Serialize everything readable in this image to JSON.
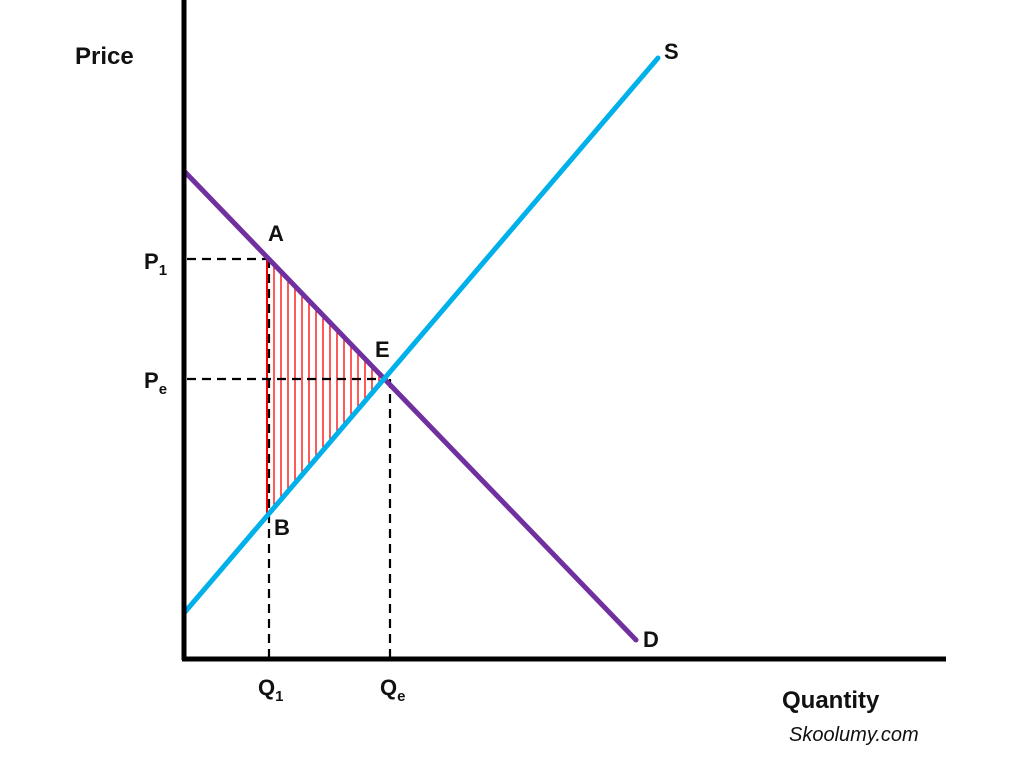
{
  "diagram": {
    "y_axis_label": "Price",
    "x_axis_label": "Quantity",
    "supply_label": "S",
    "demand_label": "D",
    "point_a_label": "A",
    "point_b_label": "B",
    "point_e_label": "E",
    "p1_label": {
      "base": "P",
      "sub": "1"
    },
    "pe_label": {
      "base": "P",
      "sub": "e"
    },
    "q1_label": {
      "base": "Q",
      "sub": "1"
    },
    "qe_label": {
      "base": "Q",
      "sub": "e"
    },
    "credit": "Skoolumy.com"
  },
  "colors": {
    "axis": "#000000",
    "supply": "#00b0ea",
    "demand": "#7030a0",
    "shading": "#ff0000",
    "guide": "#000000"
  }
}
